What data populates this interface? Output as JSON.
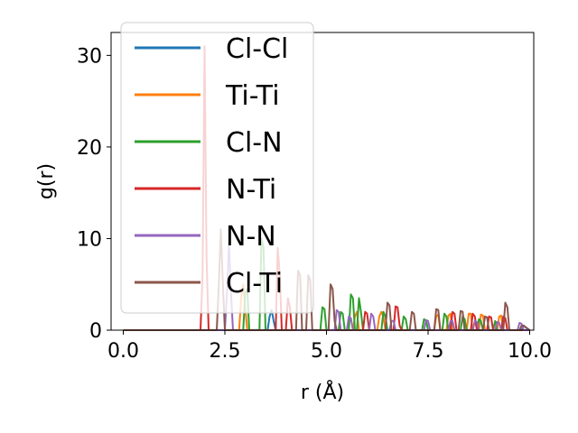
{
  "chart_data": {
    "type": "line",
    "xlabel": "r (Å)",
    "ylabel": "g(r)",
    "xlim": [
      -0.3,
      10.1
    ],
    "ylim": [
      0,
      32.5
    ],
    "xticks": [
      0.0,
      2.5,
      5.0,
      7.5,
      10.0
    ],
    "xtick_labels": [
      "0.0",
      "2.5",
      "5.0",
      "7.5",
      "10.0"
    ],
    "yticks": [
      0,
      10,
      20,
      30
    ],
    "ytick_labels": [
      "0",
      "10",
      "20",
      "30"
    ],
    "grid": false,
    "legend_position": "upper-left",
    "series": [
      {
        "name": "Cl-Cl",
        "color": "#1f77b4",
        "x": [
          0.0,
          3.55,
          3.6,
          3.65,
          3.7,
          3.75,
          9.8,
          9.85,
          9.9,
          10.0
        ],
        "y": [
          0,
          0,
          1.5,
          2.2,
          1.0,
          0,
          0,
          0.5,
          0.3,
          0
        ]
      },
      {
        "name": "Ti-Ti",
        "color": "#ff7f0e",
        "x": [
          0.0,
          2.85,
          2.9,
          2.95,
          3.0,
          3.05,
          5.65,
          5.7,
          5.75,
          5.8,
          6.25,
          6.3,
          6.35,
          6.4,
          6.45,
          7.65,
          7.7,
          7.75,
          7.8,
          7.95,
          8.0,
          8.05,
          8.1,
          8.45,
          8.5,
          8.55,
          8.6,
          8.75,
          8.8,
          8.85,
          8.9,
          9.2,
          9.25,
          9.3,
          9.35,
          10.0
        ],
        "y": [
          0,
          0,
          3.5,
          5.0,
          2.5,
          0,
          0,
          1.5,
          2.0,
          0,
          0,
          1.5,
          2.0,
          1.5,
          0,
          0,
          1.5,
          1.7,
          0,
          0,
          1.6,
          1.8,
          0,
          0,
          1.8,
          1.8,
          0,
          0,
          1.7,
          1.6,
          0,
          0,
          1.5,
          1.6,
          0,
          0
        ]
      },
      {
        "name": "Cl-N",
        "color": "#2ca02c",
        "x": [
          0.0,
          2.95,
          3.0,
          3.05,
          3.1,
          3.35,
          3.4,
          3.45,
          3.5,
          4.85,
          4.9,
          4.95,
          5.0,
          5.3,
          5.35,
          5.4,
          5.45,
          5.55,
          5.6,
          5.65,
          5.7,
          5.75,
          5.8,
          5.85,
          5.9,
          6.35,
          6.4,
          6.45,
          6.5,
          6.85,
          6.9,
          6.95,
          7.0,
          7.35,
          7.4,
          7.45,
          7.5,
          7.85,
          7.9,
          7.95,
          8.0,
          8.3,
          8.35,
          8.4,
          8.45,
          8.7,
          8.75,
          8.8,
          8.85,
          9.1,
          9.15,
          9.2,
          10.0
        ],
        "y": [
          0,
          0,
          4.0,
          4.5,
          0,
          0,
          10.0,
          9.0,
          0,
          0,
          2.5,
          2.3,
          0,
          0,
          2.0,
          1.8,
          0,
          0,
          3.9,
          3.5,
          0,
          0,
          3.5,
          2.0,
          0,
          0,
          2.0,
          1.5,
          0,
          0,
          1.5,
          1.2,
          0,
          0,
          1.2,
          1.0,
          0,
          0,
          1.8,
          1.5,
          0,
          0,
          1.5,
          1.2,
          0,
          0,
          1.2,
          1.0,
          0,
          0,
          1.0,
          0,
          0
        ]
      },
      {
        "name": "N-Ti",
        "color": "#d62728",
        "x": [
          0.0,
          1.9,
          1.95,
          2.0,
          2.05,
          2.1,
          2.2,
          2.25,
          3.75,
          3.8,
          3.85,
          3.9,
          4.0,
          4.05,
          4.1,
          4.15,
          5.9,
          5.95,
          6.0,
          6.05,
          6.65,
          6.7,
          6.75,
          6.8,
          6.85,
          8.05,
          8.1,
          8.15,
          8.2,
          8.55,
          8.6,
          8.65,
          8.7,
          8.95,
          9.0,
          9.05,
          9.1,
          9.3,
          9.35,
          9.4,
          9.45,
          10.0
        ],
        "y": [
          0,
          0,
          6.0,
          31.0,
          8.0,
          0,
          0,
          0,
          0,
          9.0,
          6.0,
          0,
          0,
          3.5,
          2.5,
          0,
          0,
          2.0,
          1.8,
          0,
          0,
          2.6,
          2.5,
          0.5,
          0,
          0,
          2.0,
          1.8,
          0,
          0,
          1.8,
          1.5,
          0,
          0,
          1.5,
          1.4,
          0,
          0,
          1.5,
          1.3,
          0,
          0
        ]
      },
      {
        "name": "N-N",
        "color": "#9467bd",
        "x": [
          0.0,
          2.5,
          2.55,
          2.6,
          2.65,
          2.7,
          5.2,
          5.25,
          5.3,
          5.35,
          5.5,
          5.55,
          5.6,
          5.65,
          6.05,
          6.1,
          6.15,
          6.2,
          6.55,
          6.6,
          6.65,
          6.7,
          7.4,
          7.45,
          7.5,
          7.55,
          8.0,
          8.05,
          8.1,
          8.15,
          8.6,
          8.65,
          8.7,
          8.75,
          9.15,
          9.2,
          9.25,
          9.3,
          9.7,
          9.75,
          9.8,
          9.85,
          10.0
        ],
        "y": [
          0,
          0,
          4.0,
          9.5,
          4.0,
          0,
          0,
          2.2,
          2.0,
          0,
          0,
          1.5,
          1.3,
          0,
          0,
          1.8,
          1.5,
          0,
          0,
          1.0,
          1.0,
          0,
          0,
          1.1,
          1.0,
          0,
          0,
          1.0,
          1.0,
          0,
          0,
          1.0,
          0.9,
          0,
          0,
          0.9,
          0.8,
          0,
          0,
          0.8,
          0.7,
          0,
          0
        ]
      },
      {
        "name": "Cl-Ti",
        "color": "#8c564b",
        "x": [
          0.0,
          2.3,
          2.35,
          2.4,
          2.45,
          2.5,
          4.25,
          4.3,
          4.35,
          4.4,
          4.5,
          4.55,
          4.6,
          4.65,
          5.05,
          5.1,
          5.15,
          5.2,
          5.25,
          6.45,
          6.5,
          6.55,
          6.6,
          7.05,
          7.1,
          7.15,
          7.2,
          7.65,
          7.7,
          7.75,
          7.8,
          8.25,
          8.3,
          8.35,
          8.4,
          8.85,
          8.9,
          8.95,
          9.0,
          9.35,
          9.4,
          9.45,
          9.5,
          9.75,
          9.8,
          9.85,
          10.0
        ],
        "y": [
          0,
          0,
          5.0,
          11.0,
          5.0,
          0,
          0,
          6.5,
          6.0,
          0,
          0,
          6.0,
          5.5,
          0,
          0,
          5.0,
          4.5,
          1.0,
          0,
          0,
          3.0,
          2.7,
          0,
          0,
          2.0,
          1.8,
          0,
          0,
          2.3,
          2.2,
          0,
          0,
          2.1,
          2.0,
          0,
          0,
          1.5,
          1.4,
          0,
          0,
          3.0,
          2.5,
          0,
          0,
          0.5,
          0.5,
          0
        ]
      }
    ]
  }
}
